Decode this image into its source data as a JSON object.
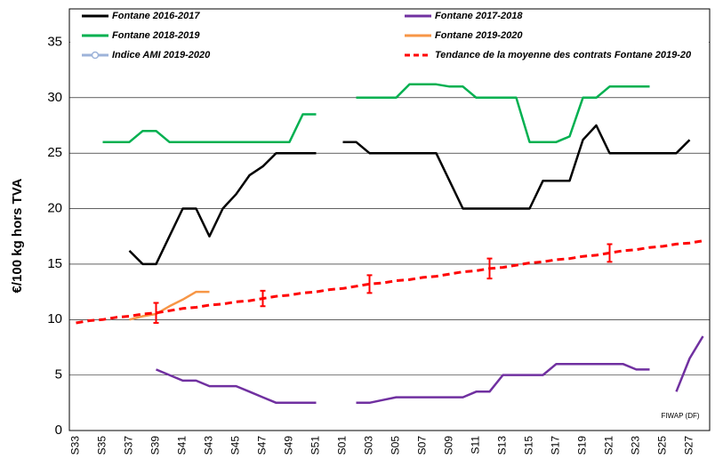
{
  "chart_data": {
    "type": "line",
    "y_label": "€/100 kg hors TVA",
    "annotation": "FIWAP (DF)",
    "categories": [
      "S33",
      null,
      "S35",
      null,
      "S37",
      null,
      "S39",
      null,
      "S41",
      null,
      "S43",
      null,
      "S45",
      null,
      "S47",
      null,
      "S49",
      null,
      "S51",
      null,
      "S01",
      null,
      "S03",
      null,
      "S05",
      null,
      "S07",
      null,
      "S09",
      null,
      "S11",
      null,
      "S13",
      null,
      "S15",
      null,
      "S17",
      null,
      "S19",
      null,
      "S21",
      null,
      "S23",
      null,
      "S25",
      null,
      "S27",
      null
    ],
    "ylim": [
      0,
      38
    ],
    "yticks": [
      0,
      5,
      10,
      15,
      20,
      25,
      30,
      35
    ],
    "grid": true,
    "series": [
      {
        "name": "Fontane 2016-2017",
        "color": "#000000",
        "values": [
          null,
          null,
          null,
          null,
          16.2,
          15,
          15,
          17.5,
          20,
          20,
          17.5,
          20,
          21.3,
          23,
          23.8,
          25,
          25,
          25,
          25,
          null,
          26,
          26,
          25,
          25,
          25,
          25,
          25,
          25,
          22.5,
          20,
          20,
          20,
          20,
          20,
          20,
          22.5,
          22.5,
          22.5,
          26.2,
          27.5,
          25,
          25,
          25,
          25,
          25,
          25,
          26.2,
          null
        ]
      },
      {
        "name": "Fontane 2017-2018",
        "color": "#7030a0",
        "values": [
          null,
          null,
          null,
          null,
          null,
          null,
          5.5,
          5,
          4.5,
          4.5,
          4,
          4,
          4,
          3.5,
          3,
          2.5,
          2.5,
          2.5,
          2.5,
          null,
          null,
          2.5,
          2.5,
          2.75,
          3,
          3,
          3,
          3,
          3,
          3,
          3.5,
          3.5,
          5,
          5,
          5,
          5,
          6,
          6,
          6,
          6,
          6,
          6,
          5.5,
          5.5,
          null,
          3.5,
          6.5,
          8.5
        ]
      },
      {
        "name": "Fontane 2018-2019",
        "color": "#00b050",
        "values": [
          null,
          null,
          26,
          26,
          26,
          27,
          27,
          26,
          26,
          26,
          26,
          26,
          26,
          26,
          26,
          26,
          26,
          28.5,
          28.5,
          null,
          null,
          30,
          30,
          30,
          30,
          31.2,
          31.2,
          31.2,
          31,
          31,
          30,
          30,
          30,
          30,
          26,
          26,
          26,
          26.5,
          30,
          30,
          31,
          31,
          31,
          31,
          null,
          null,
          null,
          null
        ]
      },
      {
        "name": "Fontane 2019-2020",
        "color": "#f79646",
        "values": [
          null,
          null,
          null,
          null,
          10,
          10.3,
          10.5,
          11.2,
          11.8,
          12.5,
          12.5,
          null,
          null,
          null,
          null,
          null,
          null,
          null,
          null,
          null,
          null,
          null,
          null,
          null,
          null,
          null,
          null,
          null,
          null,
          null,
          null,
          null,
          null,
          null,
          null,
          null,
          null,
          null,
          null,
          null,
          null,
          null,
          null,
          null,
          null,
          null,
          null,
          null
        ]
      },
      {
        "name": "Indice AMI 2019-2020",
        "color": "#9db3d9",
        "values": [
          null,
          null,
          null,
          null,
          null,
          null,
          null,
          null,
          null,
          null,
          null,
          null,
          null,
          null,
          null,
          null,
          null,
          null,
          null,
          null,
          null,
          null,
          null,
          null,
          null,
          null,
          null,
          null,
          null,
          null,
          null,
          null,
          null,
          null,
          null,
          null,
          null,
          null,
          null,
          null,
          null,
          null,
          null,
          null,
          null,
          null,
          null,
          null
        ]
      },
      {
        "name": "Tendance de la moyenne des contrats Fontane 2019-20",
        "color": "#ff0000",
        "dashed": true,
        "values": [
          9.7,
          9.9,
          10,
          10.2,
          10.3,
          10.5,
          10.6,
          10.8,
          11,
          11.1,
          11.3,
          11.4,
          11.6,
          11.7,
          11.9,
          12.1,
          12.2,
          12.4,
          12.5,
          12.7,
          12.8,
          13,
          13.2,
          13.3,
          13.5,
          13.6,
          13.8,
          13.9,
          14.1,
          14.3,
          14.4,
          14.6,
          14.7,
          14.9,
          15.1,
          15.2,
          15.4,
          15.5,
          15.7,
          15.8,
          16,
          16.2,
          16.3,
          16.5,
          16.6,
          16.8,
          16.9,
          17.1
        ],
        "errors": [
          null,
          null,
          null,
          null,
          null,
          null,
          0.9,
          null,
          null,
          null,
          null,
          null,
          null,
          null,
          0.7,
          null,
          null,
          null,
          null,
          null,
          null,
          null,
          0.8,
          null,
          null,
          null,
          null,
          null,
          null,
          null,
          null,
          0.9,
          null,
          null,
          null,
          null,
          null,
          null,
          null,
          null,
          0.8,
          null,
          null,
          null,
          null,
          null,
          null,
          null
        ]
      }
    ]
  }
}
